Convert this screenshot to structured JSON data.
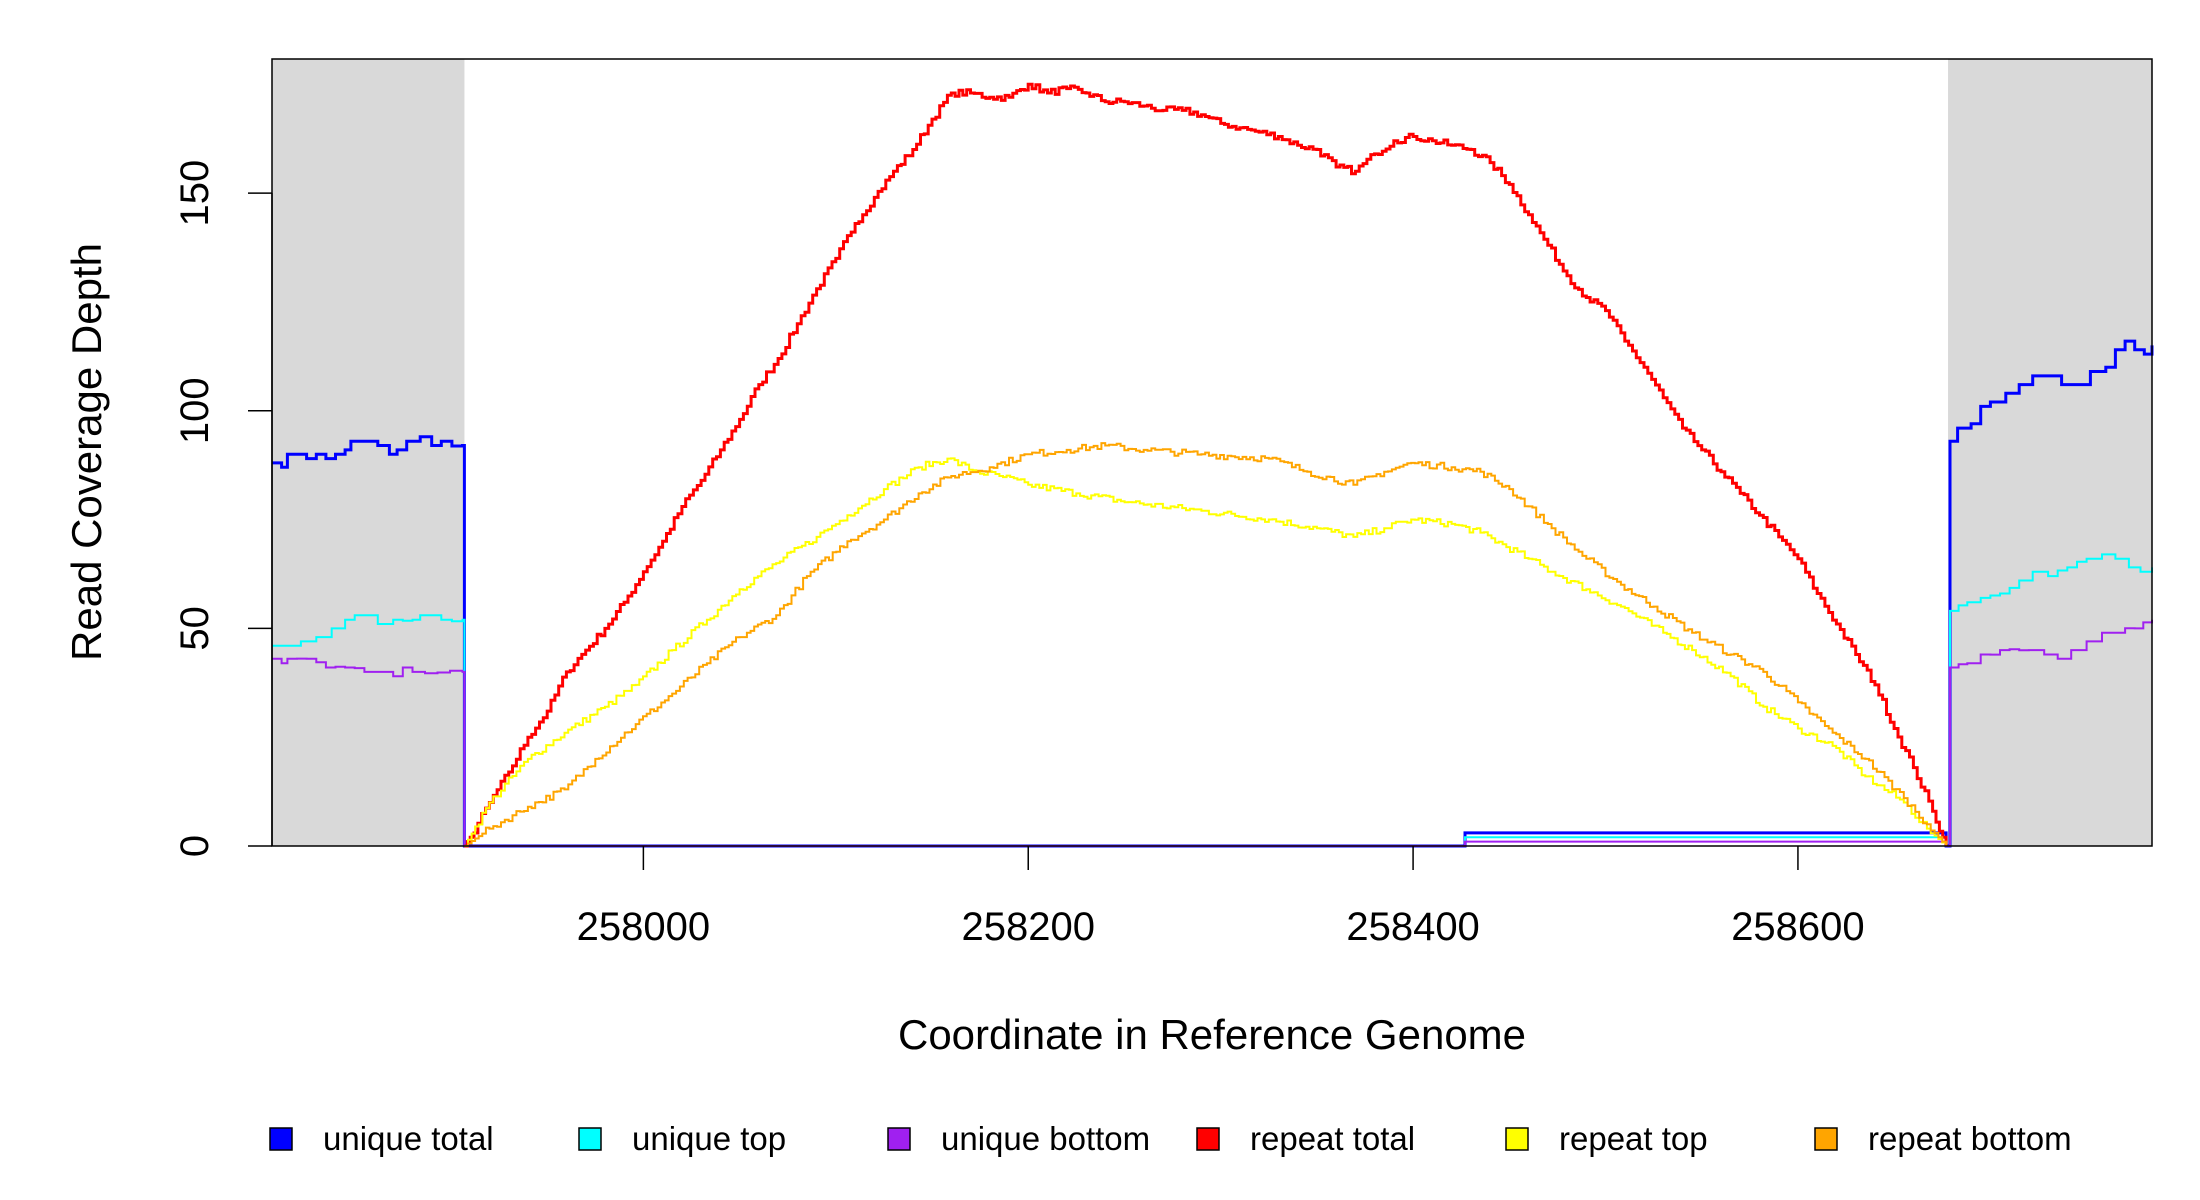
{
  "chart_data": {
    "type": "line",
    "title": "",
    "xlabel": "Coordinate in Reference Genome",
    "ylabel": "Read Coverage Depth",
    "xlim": [
      257807,
      258784
    ],
    "ylim": [
      0,
      180.8
    ],
    "xticks": [
      258000,
      258200,
      258400,
      258600
    ],
    "xtick_labels": [
      "258000",
      "258200",
      "258400",
      "258600"
    ],
    "yticks": [
      0,
      50,
      100,
      150
    ],
    "ytick_labels": [
      "0",
      "50",
      "100",
      "150"
    ],
    "grid": false,
    "shaded_regions": [
      [
        257807,
        257907
      ],
      [
        258678,
        258784
      ]
    ],
    "shade_color": "#d9d9d9",
    "legend_placement": "bottom",
    "series": [
      {
        "name": "unique total",
        "color": "#0000ff",
        "width": 3,
        "points": [
          [
            257807,
            88
          ],
          [
            257812,
            87
          ],
          [
            257815,
            90
          ],
          [
            257820,
            90
          ],
          [
            257825,
            89
          ],
          [
            257830,
            90
          ],
          [
            257835,
            89
          ],
          [
            257840,
            90
          ],
          [
            257845,
            91
          ],
          [
            257848,
            93
          ],
          [
            257855,
            93
          ],
          [
            257862,
            92
          ],
          [
            257868,
            90
          ],
          [
            257872,
            91
          ],
          [
            257877,
            93
          ],
          [
            257884,
            94
          ],
          [
            257890,
            92
          ],
          [
            257895,
            93
          ],
          [
            257906,
            92
          ],
          [
            257907,
            0
          ],
          [
            258427,
            0
          ],
          [
            258427,
            3
          ],
          [
            258677,
            3
          ],
          [
            258677,
            0
          ],
          [
            258679,
            0
          ],
          [
            258679,
            93
          ],
          [
            258683,
            96
          ],
          [
            258690,
            97
          ],
          [
            258695,
            101
          ],
          [
            258700,
            102
          ],
          [
            258708,
            104
          ],
          [
            258715,
            106
          ],
          [
            258722,
            108
          ],
          [
            258730,
            108
          ],
          [
            258737,
            106
          ],
          [
            258745,
            106
          ],
          [
            258752,
            109
          ],
          [
            258760,
            110
          ],
          [
            258765,
            114
          ],
          [
            258770,
            116
          ],
          [
            258775,
            114
          ],
          [
            258780,
            113
          ],
          [
            258784,
            115
          ]
        ]
      },
      {
        "name": "unique top",
        "color": "#00ffff",
        "width": 2,
        "points": [
          [
            257807,
            46
          ],
          [
            257815,
            46
          ],
          [
            257822,
            47
          ],
          [
            257830,
            48
          ],
          [
            257838,
            50
          ],
          [
            257845,
            52
          ],
          [
            257855,
            53
          ],
          [
            257862,
            51
          ],
          [
            257870,
            52
          ],
          [
            257880,
            52
          ],
          [
            257884,
            53
          ],
          [
            257890,
            53
          ],
          [
            257895,
            52
          ],
          [
            257906,
            52
          ],
          [
            257907,
            0
          ],
          [
            258427,
            0
          ],
          [
            258427,
            2
          ],
          [
            258677,
            2
          ],
          [
            258677,
            0
          ],
          [
            258679,
            0
          ],
          [
            258679,
            54
          ],
          [
            258688,
            56
          ],
          [
            258695,
            57
          ],
          [
            258705,
            58
          ],
          [
            258715,
            61
          ],
          [
            258722,
            63
          ],
          [
            258730,
            62
          ],
          [
            258740,
            64
          ],
          [
            258750,
            66
          ],
          [
            258758,
            67
          ],
          [
            258765,
            66
          ],
          [
            258772,
            64
          ],
          [
            258778,
            63
          ],
          [
            258784,
            64
          ]
        ]
      },
      {
        "name": "unique bottom",
        "color": "#a020f0",
        "width": 2,
        "points": [
          [
            257807,
            43
          ],
          [
            257812,
            42
          ],
          [
            257815,
            43
          ],
          [
            257825,
            43
          ],
          [
            257835,
            41
          ],
          [
            257845,
            41
          ],
          [
            257855,
            40
          ],
          [
            257862,
            40
          ],
          [
            257870,
            39
          ],
          [
            257875,
            41
          ],
          [
            257880,
            40
          ],
          [
            257906,
            40
          ],
          [
            257907,
            0
          ],
          [
            258427,
            0
          ],
          [
            258427,
            1
          ],
          [
            258677,
            1
          ],
          [
            258677,
            0
          ],
          [
            258679,
            0
          ],
          [
            258679,
            41
          ],
          [
            258688,
            42
          ],
          [
            258695,
            44
          ],
          [
            258705,
            45
          ],
          [
            258720,
            45
          ],
          [
            258728,
            44
          ],
          [
            258735,
            43
          ],
          [
            258742,
            45
          ],
          [
            258750,
            47
          ],
          [
            258758,
            49
          ],
          [
            258765,
            49
          ],
          [
            258775,
            50
          ],
          [
            258784,
            52
          ]
        ]
      },
      {
        "name": "repeat total",
        "color": "#ff0000",
        "width": 3,
        "points": [
          [
            257907,
            0
          ],
          [
            257910,
            2
          ],
          [
            257920,
            10
          ],
          [
            257930,
            17
          ],
          [
            257940,
            25
          ],
          [
            257950,
            31
          ],
          [
            257960,
            40
          ],
          [
            257970,
            45
          ],
          [
            257980,
            50
          ],
          [
            257990,
            56
          ],
          [
            258000,
            63
          ],
          [
            258010,
            70
          ],
          [
            258020,
            78
          ],
          [
            258030,
            84
          ],
          [
            258040,
            91
          ],
          [
            258050,
            98
          ],
          [
            258060,
            106
          ],
          [
            258070,
            112
          ],
          [
            258080,
            120
          ],
          [
            258090,
            128
          ],
          [
            258100,
            135
          ],
          [
            258110,
            143
          ],
          [
            258120,
            149
          ],
          [
            258130,
            155
          ],
          [
            258140,
            160
          ],
          [
            258150,
            167
          ],
          [
            258160,
            173
          ],
          [
            258170,
            173
          ],
          [
            258180,
            172
          ],
          [
            258190,
            172
          ],
          [
            258200,
            175
          ],
          [
            258210,
            173
          ],
          [
            258220,
            174
          ],
          [
            258230,
            173
          ],
          [
            258240,
            171
          ],
          [
            258250,
            171
          ],
          [
            258260,
            170
          ],
          [
            258270,
            169
          ],
          [
            258280,
            169
          ],
          [
            258290,
            168
          ],
          [
            258300,
            166
          ],
          [
            258310,
            165
          ],
          [
            258320,
            164
          ],
          [
            258330,
            163
          ],
          [
            258340,
            161
          ],
          [
            258350,
            160
          ],
          [
            258360,
            156
          ],
          [
            258370,
            155
          ],
          [
            258380,
            159
          ],
          [
            258390,
            162
          ],
          [
            258400,
            163
          ],
          [
            258410,
            162
          ],
          [
            258420,
            161
          ],
          [
            258430,
            160
          ],
          [
            258440,
            157
          ],
          [
            258450,
            152
          ],
          [
            258460,
            145
          ],
          [
            258470,
            138
          ],
          [
            258480,
            131
          ],
          [
            258490,
            126
          ],
          [
            258500,
            123
          ],
          [
            258510,
            116
          ],
          [
            258520,
            110
          ],
          [
            258530,
            103
          ],
          [
            258540,
            96
          ],
          [
            258550,
            91
          ],
          [
            258560,
            86
          ],
          [
            258570,
            81
          ],
          [
            258580,
            76
          ],
          [
            258590,
            71
          ],
          [
            258600,
            66
          ],
          [
            258610,
            58
          ],
          [
            258620,
            51
          ],
          [
            258630,
            44
          ],
          [
            258640,
            37
          ],
          [
            258650,
            27
          ],
          [
            258660,
            18
          ],
          [
            258670,
            8
          ],
          [
            258677,
            0
          ]
        ]
      },
      {
        "name": "repeat top",
        "color": "#ffff00",
        "width": 2,
        "points": [
          [
            257907,
            0
          ],
          [
            257920,
            10
          ],
          [
            257940,
            20
          ],
          [
            257959,
            26
          ],
          [
            257980,
            32
          ],
          [
            257996,
            37
          ],
          [
            258015,
            45
          ],
          [
            258033,
            52
          ],
          [
            258050,
            59
          ],
          [
            258069,
            65
          ],
          [
            258090,
            71
          ],
          [
            258106,
            76
          ],
          [
            258125,
            82
          ],
          [
            258143,
            87
          ],
          [
            258158,
            89
          ],
          [
            258173,
            86
          ],
          [
            258185,
            85
          ],
          [
            258200,
            83
          ],
          [
            258225,
            81
          ],
          [
            258252,
            79
          ],
          [
            258290,
            77
          ],
          [
            258325,
            75
          ],
          [
            258350,
            73
          ],
          [
            258369,
            71
          ],
          [
            258385,
            73
          ],
          [
            258399,
            75
          ],
          [
            258420,
            74
          ],
          [
            258435,
            72
          ],
          [
            258460,
            66
          ],
          [
            258472,
            63
          ],
          [
            258490,
            59
          ],
          [
            258508,
            55
          ],
          [
            258530,
            49
          ],
          [
            258545,
            45
          ],
          [
            258565,
            39
          ],
          [
            258582,
            32
          ],
          [
            258600,
            27
          ],
          [
            258618,
            23
          ],
          [
            258635,
            16
          ],
          [
            258655,
            10
          ],
          [
            258667,
            4
          ],
          [
            258677,
            0
          ]
        ]
      },
      {
        "name": "repeat bottom",
        "color": "#ffa500",
        "width": 2,
        "points": [
          [
            257907,
            0
          ],
          [
            257920,
            4
          ],
          [
            257940,
            9
          ],
          [
            257959,
            13
          ],
          [
            257975,
            20
          ],
          [
            257996,
            28
          ],
          [
            258015,
            35
          ],
          [
            258033,
            42
          ],
          [
            258050,
            48
          ],
          [
            258069,
            53
          ],
          [
            258085,
            62
          ],
          [
            258106,
            70
          ],
          [
            258125,
            75
          ],
          [
            258143,
            81
          ],
          [
            258160,
            85
          ],
          [
            258180,
            87
          ],
          [
            258200,
            90
          ],
          [
            258220,
            91
          ],
          [
            258240,
            92
          ],
          [
            258260,
            91
          ],
          [
            258290,
            90
          ],
          [
            258325,
            89
          ],
          [
            258345,
            86
          ],
          [
            258369,
            83
          ],
          [
            258385,
            86
          ],
          [
            258399,
            88
          ],
          [
            258420,
            87
          ],
          [
            258435,
            86
          ],
          [
            258450,
            82
          ],
          [
            258472,
            73
          ],
          [
            258490,
            66
          ],
          [
            258508,
            60
          ],
          [
            258525,
            55
          ],
          [
            258545,
            49
          ],
          [
            258565,
            44
          ],
          [
            258582,
            40
          ],
          [
            258600,
            33
          ],
          [
            258618,
            26
          ],
          [
            258635,
            20
          ],
          [
            258655,
            11
          ],
          [
            258667,
            5
          ],
          [
            258677,
            0
          ]
        ]
      }
    ]
  }
}
